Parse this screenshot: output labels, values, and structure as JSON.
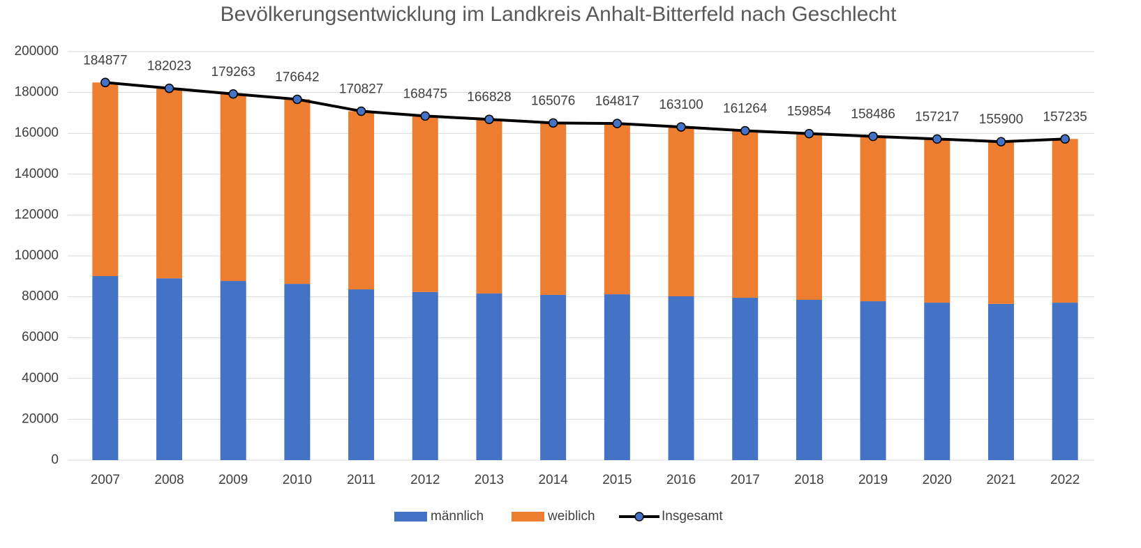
{
  "chart_data": {
    "type": "bar",
    "stacked": true,
    "title": "Bevölkerungsentwicklung im Landkreis Anhalt-Bitterfeld nach Geschlecht",
    "categories": [
      "2007",
      "2008",
      "2009",
      "2010",
      "2011",
      "2012",
      "2013",
      "2014",
      "2015",
      "2016",
      "2017",
      "2018",
      "2019",
      "2020",
      "2021",
      "2022"
    ],
    "series": [
      {
        "name": "männlich",
        "type": "bar",
        "color": "#4472c4",
        "values": [
          90100,
          89000,
          87700,
          86300,
          83600,
          82300,
          81600,
          80900,
          81200,
          80200,
          79500,
          78500,
          77800,
          77100,
          76500,
          77100
        ]
      },
      {
        "name": "weiblich",
        "type": "bar",
        "color": "#ed7d31",
        "values": [
          94777,
          93023,
          91563,
          90342,
          87227,
          86175,
          85228,
          84176,
          83617,
          82900,
          81764,
          81354,
          80686,
          80117,
          79400,
          80135
        ]
      },
      {
        "name": "Insgesamt",
        "type": "line",
        "color": "#000000",
        "marker_color": "#4472c4",
        "values": [
          184877,
          182023,
          179263,
          176642,
          170827,
          168475,
          166828,
          165076,
          164817,
          163100,
          161264,
          159854,
          158486,
          157217,
          155900,
          157235
        ]
      }
    ],
    "ylim": [
      0,
      200000
    ],
    "yticks": [
      0,
      20000,
      40000,
      60000,
      80000,
      100000,
      120000,
      140000,
      160000,
      180000,
      200000
    ],
    "grid": true,
    "legend": "bottom"
  }
}
